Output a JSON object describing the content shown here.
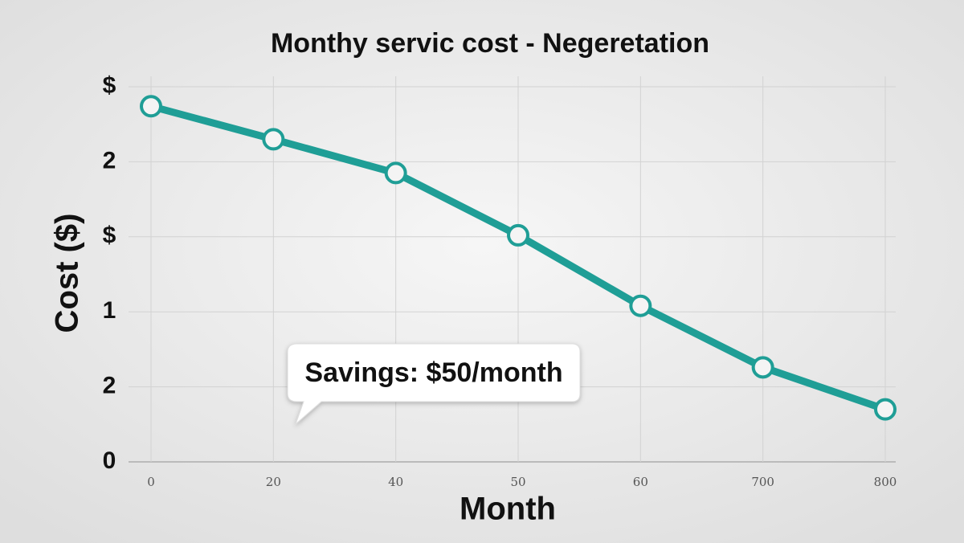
{
  "chart_data": {
    "type": "line",
    "title": "Monthy servic cost - Negeretation",
    "x_label": "Month",
    "y_label": "Cost ($)",
    "categories": [
      "0",
      "20",
      "40",
      "50",
      "60",
      "700",
      "800"
    ],
    "series": [
      {
        "name": "Cost",
        "color": "#1f9e96",
        "values": [
          4.74,
          4.3,
          3.85,
          3.02,
          2.08,
          1.26,
          0.7
        ]
      }
    ],
    "ylim": [
      0,
      5
    ],
    "ytick_labels": [
      "0",
      "2",
      "1",
      "$",
      "2",
      "$"
    ],
    "annotation": "Savings: $50/month",
    "grid": true
  }
}
